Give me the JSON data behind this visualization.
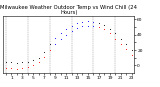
{
  "title": "Milwaukee Weather Outdoor Temp vs Wind Chill (24 Hours)",
  "title_fontsize": 3.8,
  "bg_color": "#ffffff",
  "grid_color": "#888888",
  "ylim": [
    -10,
    65
  ],
  "xlim": [
    -0.5,
    23.5
  ],
  "temp_color": "#000000",
  "windchill_color": "#ff0000",
  "highlight_color": "#0000ff",
  "temp_values": [
    5,
    4,
    3,
    4,
    5,
    7,
    10,
    18,
    28,
    36,
    42,
    47,
    52,
    55,
    57,
    58,
    57,
    56,
    53,
    48,
    42,
    35,
    28,
    20
  ],
  "wind_chill_values": [
    -3,
    -4,
    -5,
    -3,
    -2,
    0,
    4,
    11,
    20,
    28,
    34,
    40,
    45,
    49,
    51,
    52,
    51,
    50,
    47,
    42,
    35,
    28,
    21,
    13
  ],
  "highlight_hours": [
    9,
    10,
    11,
    12,
    13,
    14,
    15,
    16
  ],
  "marker_size": 1.5,
  "tick_fontsize": 3.2,
  "ytick_fontsize": 3.2,
  "yticks": [
    0,
    10,
    20,
    30,
    40,
    50,
    60
  ],
  "ytick_labels": [
    "0",
    "",
    "20",
    "",
    "40",
    "",
    "60"
  ],
  "grid_hours": [
    0,
    4,
    8,
    12,
    16,
    20
  ],
  "xtick_every": 2,
  "right_axis": true
}
